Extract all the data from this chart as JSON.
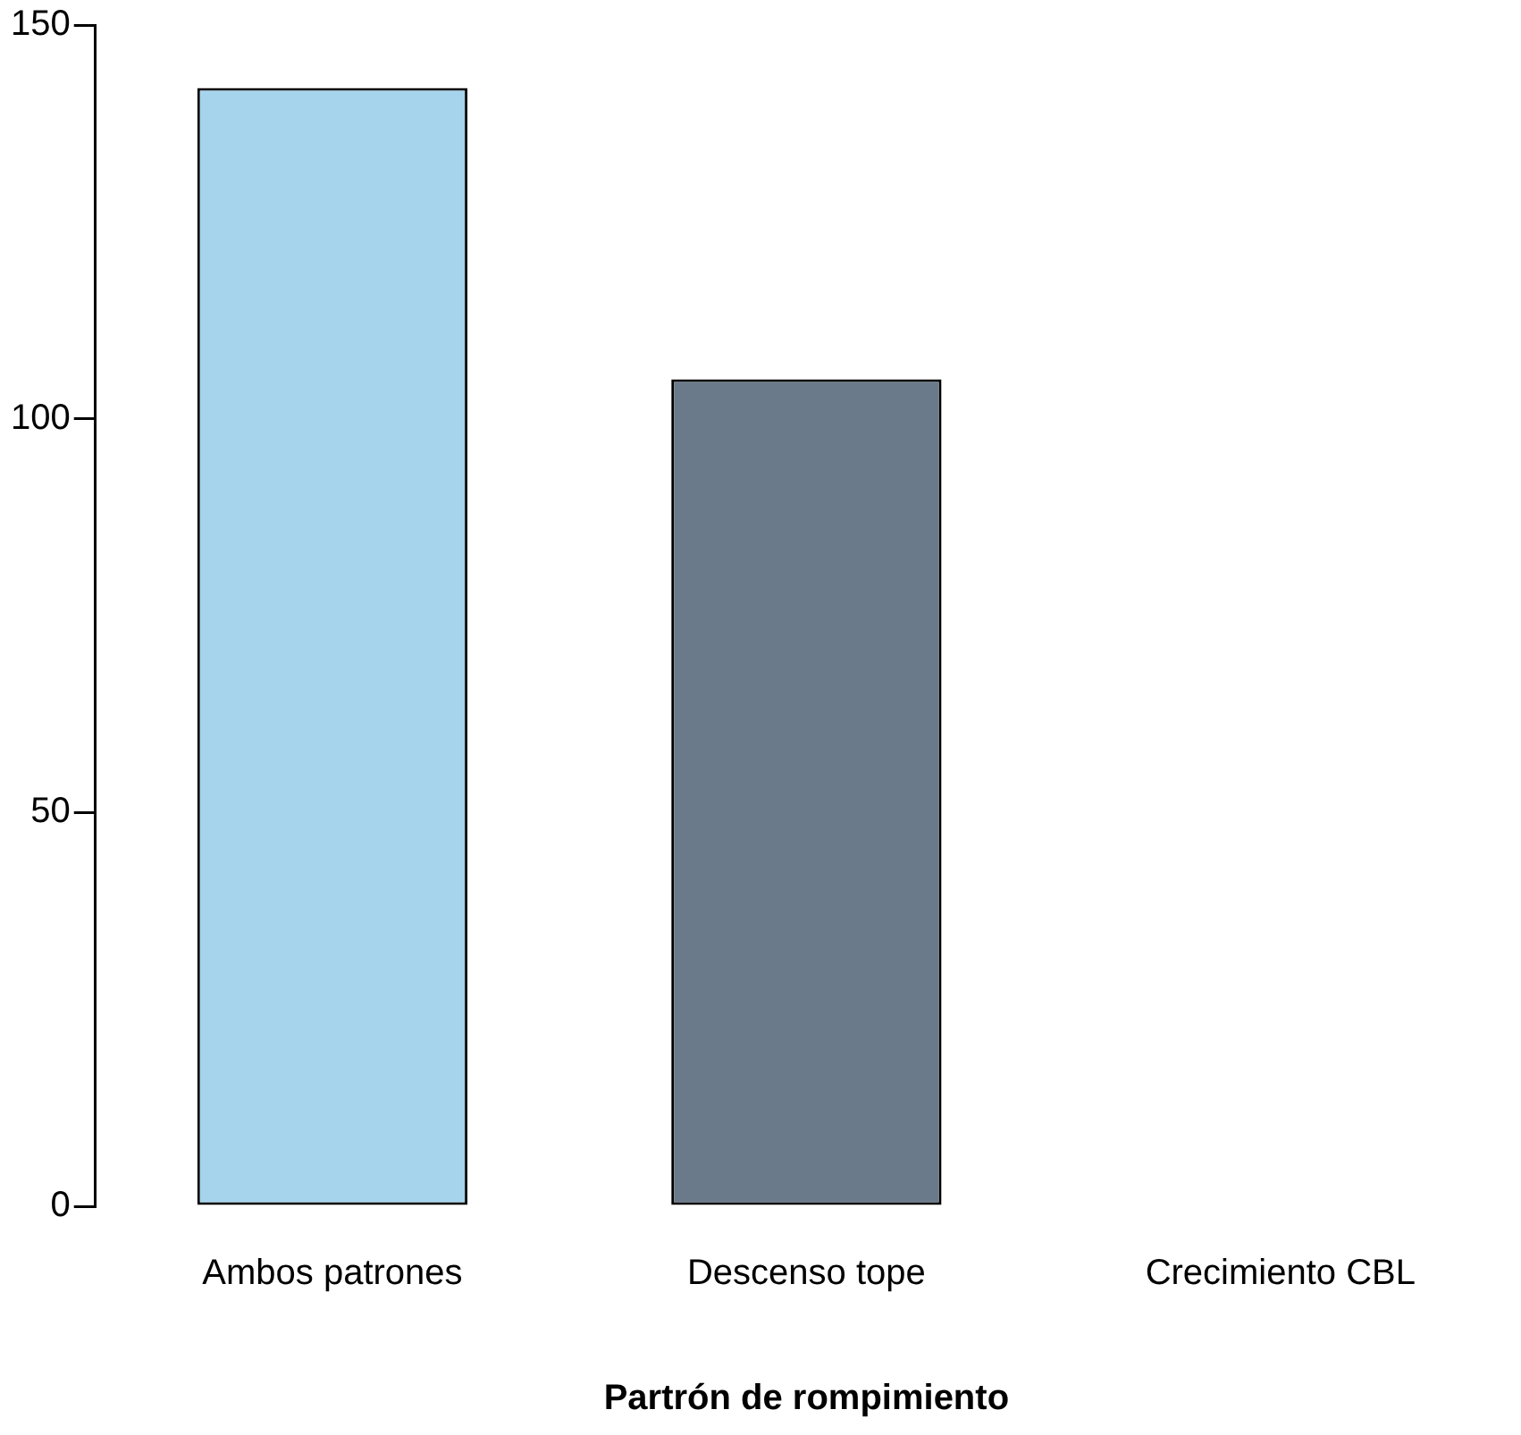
{
  "chart_data": {
    "type": "bar",
    "xlabel": "Partrón de rompimiento",
    "categories": [
      "Ambos patrones",
      "Descenso tope",
      "Crecimiento CBL"
    ],
    "values": [
      142,
      105,
      0
    ],
    "colors": [
      "#a6d4ec",
      "#6b7a8a",
      "#6b7a8a"
    ],
    "ylim": [
      0,
      150
    ],
    "yticks": [
      0,
      50,
      100,
      150
    ],
    "grid": false,
    "legend": false
  }
}
